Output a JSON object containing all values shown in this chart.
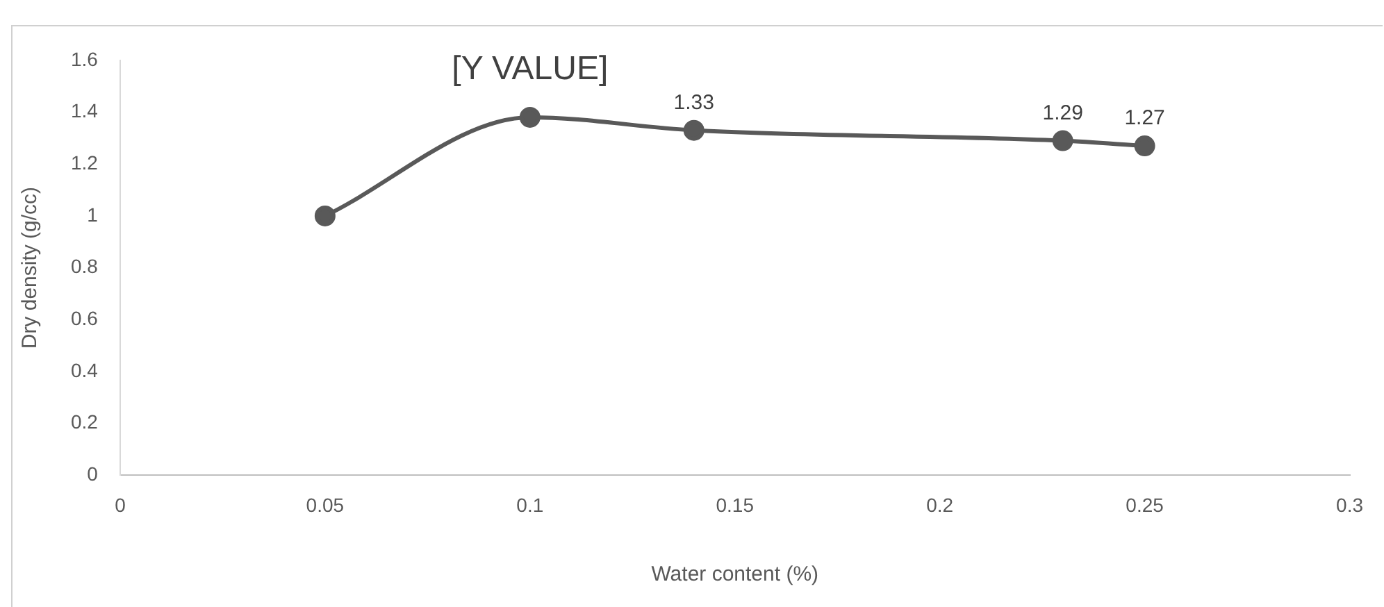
{
  "chart_data": {
    "type": "line",
    "xlabel": "Water content (%)",
    "ylabel": "Dry density (g/cc)",
    "x": [
      0.05,
      0.1,
      0.14,
      0.23,
      0.25
    ],
    "series": [
      {
        "color": "#595959",
        "values": [
          1.0,
          1.38,
          1.33,
          1.29,
          1.27
        ],
        "value_labels": [
          null,
          "[Y VALUE]",
          "1.33",
          "1.29",
          "1.27"
        ]
      }
    ],
    "xlim": [
      0,
      0.3
    ],
    "xticks": [
      0,
      0.05,
      0.1,
      0.15,
      0.2,
      0.25,
      0.3
    ],
    "ylim": [
      0,
      1.6
    ],
    "yticks": [
      0,
      0.2,
      0.4,
      0.6,
      0.8,
      1,
      1.2,
      1.4,
      1.6
    ],
    "grid": false,
    "legend": false,
    "marker": "circle",
    "line_style": "solid"
  }
}
